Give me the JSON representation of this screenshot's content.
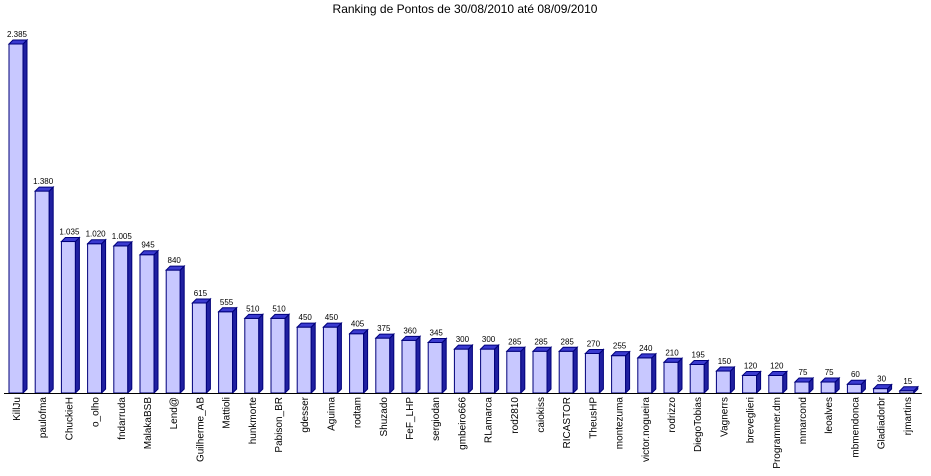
{
  "chart_data": {
    "type": "bar",
    "title": "Ranking de Pontos de 30/08/2010 até 08/09/2010",
    "xlabel": "",
    "ylabel": "",
    "ylim": [
      0,
      2385
    ],
    "grid": false,
    "legend": "none",
    "categories": [
      "KillJu",
      "paulofma",
      "ChuckieH",
      "o_olho",
      "fndarruda",
      "MalakaBSB",
      "Lend@",
      "Guilherme_AB",
      "Mattioli",
      "hunkmorte",
      "Pabison_BR",
      "gdesser",
      "Aguima",
      "rodtam",
      "Shuzado",
      "FeF_LHP",
      "sergiodan",
      "gmbeiro666",
      "RLamarca",
      "rod2810",
      "caiokiss",
      "RICASTOR",
      "TheusHP",
      "montezuma",
      "victor.nogueira",
      "rodrizzo",
      "DiegoTobias",
      "Vagnerrs",
      "breveglieri",
      "Programmer.dm",
      "mmarcond",
      "leoalves",
      "mbmendonca",
      "Gladiadorbr",
      "rjmartins"
    ],
    "values": [
      2385,
      1380,
      1035,
      1020,
      1005,
      945,
      840,
      615,
      555,
      510,
      510,
      450,
      450,
      405,
      375,
      360,
      345,
      300,
      300,
      285,
      285,
      285,
      270,
      255,
      240,
      210,
      195,
      150,
      120,
      120,
      75,
      75,
      60,
      30,
      15
    ],
    "value_labels": [
      "2.385",
      "1.380",
      "1.035",
      "1.020",
      "1.005",
      "945",
      "840",
      "615",
      "555",
      "510",
      "510",
      "450",
      "450",
      "405",
      "375",
      "360",
      "345",
      "300",
      "300",
      "285",
      "285",
      "285",
      "270",
      "255",
      "240",
      "210",
      "195",
      "150",
      "120",
      "120",
      "75",
      "75",
      "60",
      "30",
      "15"
    ],
    "colors": {
      "bar_front": "#c8c8ff",
      "bar_top": "#3b3bd0",
      "bar_side": "#2020a0",
      "bar_edge": "#00007a",
      "axis": "#000000"
    }
  }
}
